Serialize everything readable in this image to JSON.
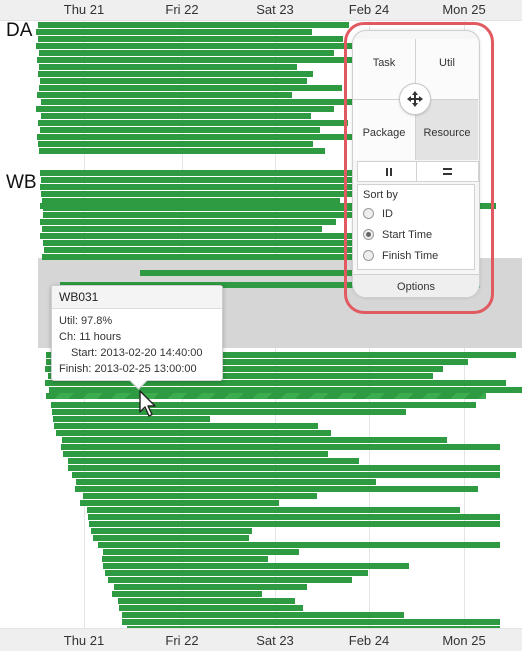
{
  "axis": {
    "ticks": [
      "Thu 21",
      "Fri 22",
      "Sat 23",
      "Feb 24",
      "Mon 25"
    ]
  },
  "groups": [
    {
      "label": "DA"
    },
    {
      "label": "WB"
    }
  ],
  "tooltip": {
    "title": "WB031",
    "util_label": "Util:",
    "util_value": "97.8%",
    "ch_label": "Ch:",
    "ch_value": "11 hours",
    "start_label": "Start:",
    "start_value": "2013-02-20 14:40:00",
    "finish_label": "Finish:",
    "finish_value": "2013-02-25 13:00:00"
  },
  "panel": {
    "task_label": "Task",
    "util_label": "Util",
    "package_label": "Package",
    "resource_label": "Resource",
    "selected_quadrant": "Resource",
    "sort_by_label": "Sort by",
    "sort_options": [
      {
        "label": "ID",
        "selected": false
      },
      {
        "label": "Start Time",
        "selected": true
      },
      {
        "label": "Finish Time",
        "selected": false
      }
    ],
    "options_label": "Options"
  },
  "icons": {
    "pan": "move-arrows-icon",
    "pause": "pause-icon",
    "equals": "equals-icon",
    "cursor": "mouse-pointer-icon"
  },
  "colors": {
    "bar": "#2e9a41",
    "highlight_ring": "#e05a60",
    "hover_band": "#d6d6d6"
  }
}
